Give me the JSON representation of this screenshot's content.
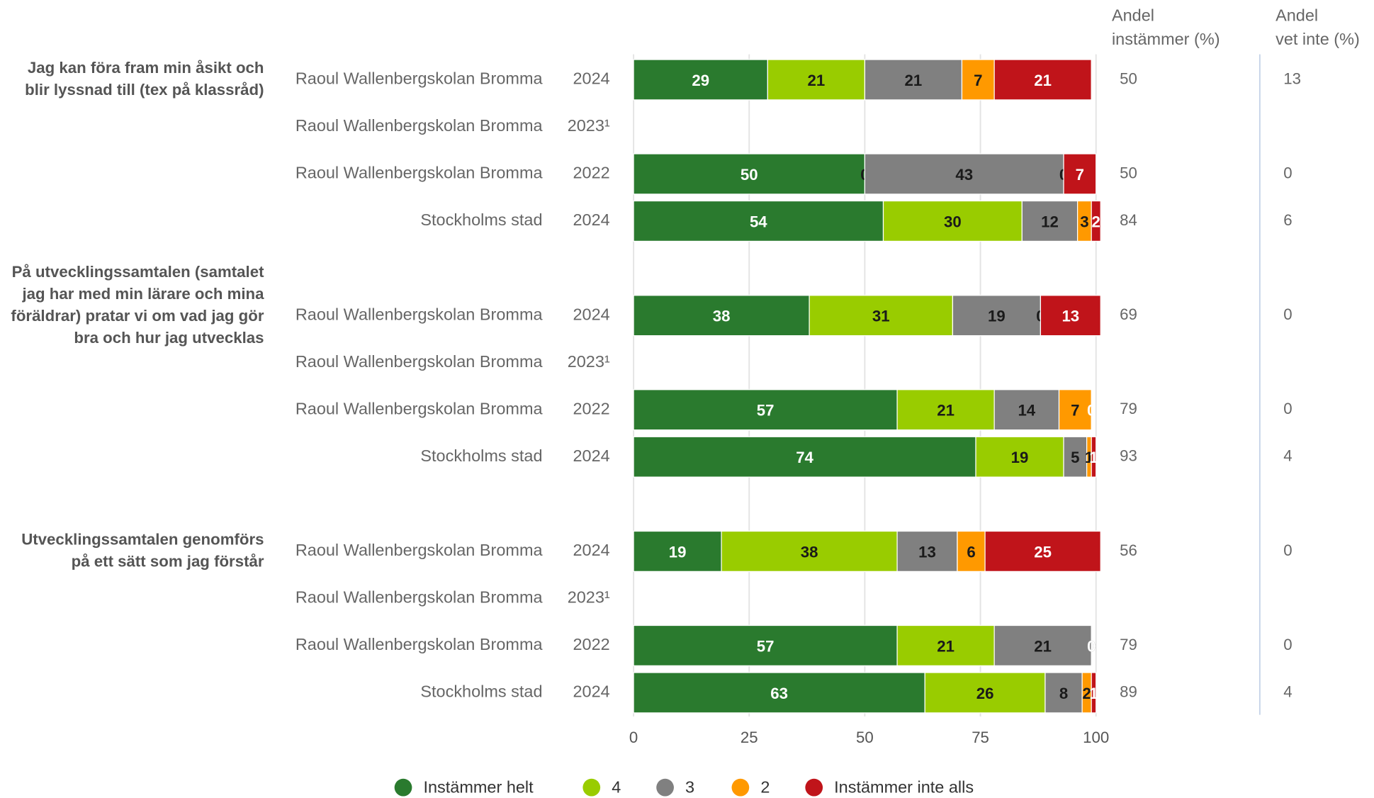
{
  "chart_data": {
    "type": "bar",
    "orientation": "horizontal",
    "stacked": true,
    "questions": [
      {
        "lines": [
          "Jag kan föra fram min åsikt och",
          "blir lyssnad till (tex på klassråd)"
        ]
      },
      {
        "lines": [
          "På utvecklingssamtalen (samtalet",
          "jag har med min lärare och mina",
          "föräldrar) pratar vi om vad jag gör",
          "bra och hur jag utvecklas"
        ]
      },
      {
        "lines": [
          "Utvecklingssamtalen genomförs",
          "på ett sätt som jag förstår"
        ]
      }
    ],
    "categories": [
      "Raoul Wallenbergskolan Bromma",
      "Raoul Wallenbergskolan Bromma",
      "Raoul Wallenbergskolan Bromma",
      "Stockholms stad",
      "Raoul Wallenbergskolan Bromma",
      "Raoul Wallenbergskolan Bromma",
      "Raoul Wallenbergskolan Bromma",
      "Stockholms stad",
      "Raoul Wallenbergskolan Bromma",
      "Raoul Wallenbergskolan Bromma",
      "Raoul Wallenbergskolan Bromma",
      "Stockholms stad"
    ],
    "years": [
      "2024",
      "2023¹",
      "2022",
      "2024",
      "2024",
      "2023¹",
      "2022",
      "2024",
      "2024",
      "2023¹",
      "2022",
      "2024"
    ],
    "series": [
      {
        "name": "Instämmer helt",
        "color": "#2a7a2e",
        "label_color": "#ffffff",
        "values": [
          29,
          null,
          50,
          54,
          38,
          null,
          57,
          74,
          19,
          null,
          57,
          63
        ]
      },
      {
        "name": "4",
        "color": "#99cc00",
        "label_color": "#1a1a1a",
        "values": [
          21,
          null,
          0,
          30,
          31,
          null,
          21,
          19,
          38,
          null,
          21,
          26
        ]
      },
      {
        "name": "3",
        "color": "#808080",
        "label_color": "#1a1a1a",
        "values": [
          21,
          null,
          43,
          12,
          19,
          null,
          14,
          5,
          13,
          null,
          21,
          8
        ]
      },
      {
        "name": "2",
        "color": "#ff9900",
        "label_color": "#1a1a1a",
        "values": [
          7,
          null,
          0,
          3,
          0,
          null,
          7,
          1,
          6,
          null,
          0,
          2
        ]
      },
      {
        "name": "Instämmer inte alls",
        "color": "#c0141a",
        "label_color": "#ffffff",
        "values": [
          21,
          null,
          7,
          2,
          13,
          null,
          0,
          1,
          25,
          null,
          0,
          1
        ]
      }
    ],
    "xlim": [
      0,
      100
    ],
    "xticks": [
      0,
      25,
      50,
      75,
      100
    ],
    "grid": true,
    "side_columns": [
      {
        "lines": [
          "Andel",
          "instämmer (%)"
        ],
        "values": [
          50,
          null,
          50,
          84,
          69,
          null,
          79,
          93,
          56,
          null,
          79,
          89
        ]
      },
      {
        "lines": [
          "Andel",
          "vet inte (%)"
        ],
        "values": [
          13,
          null,
          0,
          6,
          0,
          null,
          0,
          4,
          0,
          null,
          0,
          4
        ]
      }
    ]
  }
}
